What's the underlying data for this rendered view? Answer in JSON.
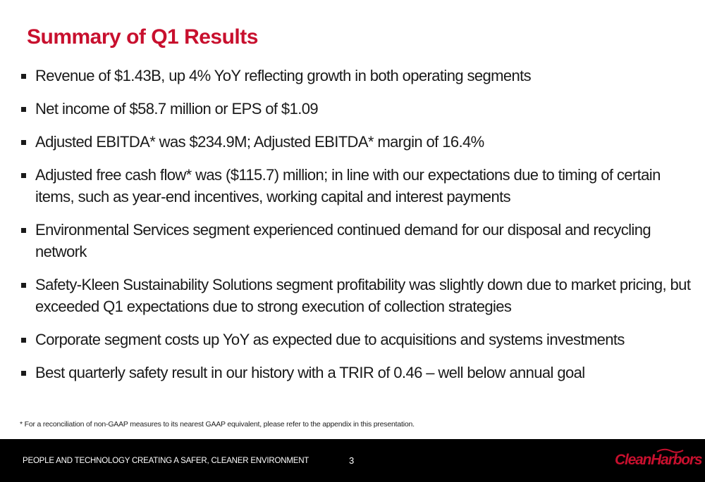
{
  "title": "Summary of Q1 Results",
  "bullets": [
    "Revenue of $1.43B, up 4% YoY reflecting growth in both operating segments",
    "Net income of $58.7 million or EPS of $1.09",
    "Adjusted EBITDA* was $234.9M; Adjusted EBITDA* margin of 16.4%",
    "Adjusted free cash flow* was ($115.7) million; in line with our expectations due to timing of certain items, such as year-end incentives, working capital and interest payments",
    "Environmental Services segment experienced continued demand for our disposal and recycling network",
    "Safety-Kleen Sustainability Solutions segment profitability was slightly down due to market pricing, but exceeded Q1 expectations due to strong execution of collection strategies",
    "Corporate segment costs up YoY as expected due to acquisitions and systems investments",
    "Best quarterly safety result in our history with a TRIR of 0.46 – well below annual goal"
  ],
  "footnote": "* For a reconciliation of non-GAAP measures to its nearest GAAP equivalent, please refer to the appendix in this presentation.",
  "footer": {
    "tagline": "PEOPLE AND TECHNOLOGY CREATING A SAFER, CLEANER ENVIRONMENT",
    "page_number": "3",
    "logo_text": "CleanHarbors",
    "logo_icon": "clean-harbors-logo",
    "background_color": "#000000",
    "logo_color": "#c8102e"
  },
  "colors": {
    "title": "#c8102e",
    "text": "#1a1a1a"
  }
}
